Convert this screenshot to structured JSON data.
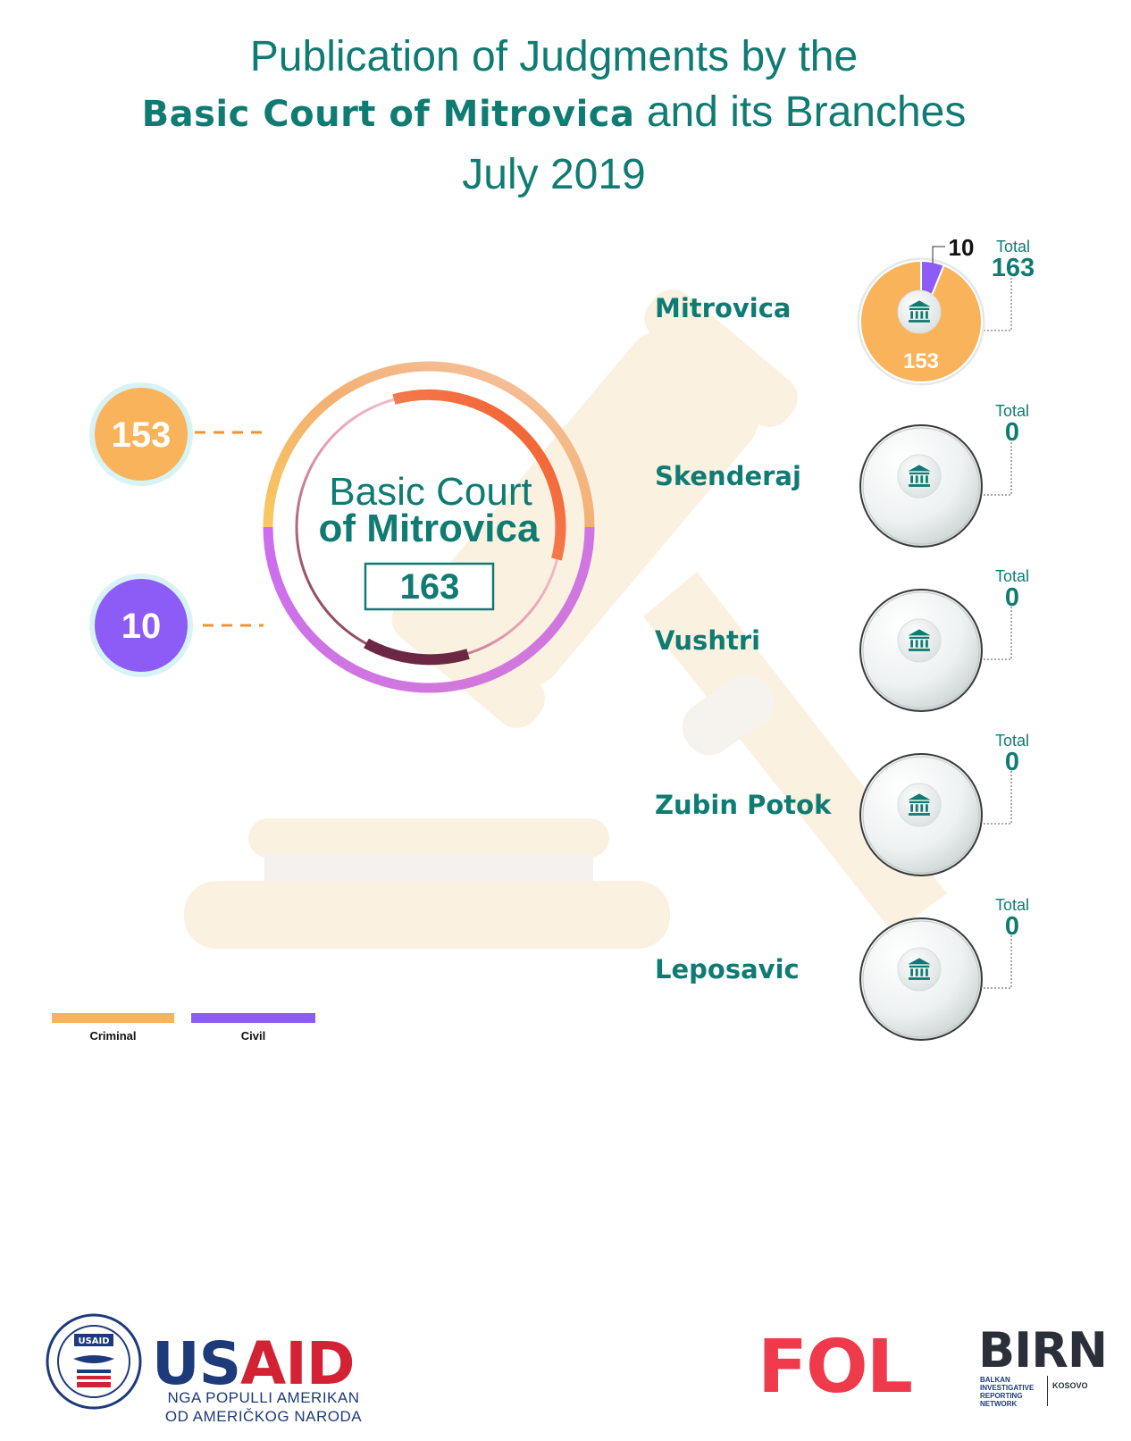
{
  "title": {
    "line1": "Publication of Judgments by the",
    "line2_bold": "Basic Court of Mitrovica",
    "line2_rest": " and its Branches",
    "line3": "July 2019"
  },
  "colors": {
    "criminal": "#f9b35a",
    "civil": "#8d5cf6",
    "teal": "#0f7b72"
  },
  "chart_data": [
    {
      "type": "donut",
      "title": "Basic Court of Mitrovica",
      "total": 163,
      "series": [
        {
          "name": "Criminal",
          "value": 153
        },
        {
          "name": "Civil",
          "value": 10
        }
      ],
      "legend": "bottom-left"
    },
    {
      "type": "pie",
      "branches": [
        {
          "name": "Mitrovica",
          "total": 163,
          "criminal": 153,
          "civil": 10
        },
        {
          "name": "Skenderaj",
          "total": 0,
          "criminal": 0,
          "civil": 0
        },
        {
          "name": "Vushtri",
          "total": 0,
          "criminal": 0,
          "civil": 0
        },
        {
          "name": "Zubin Potok",
          "total": 0,
          "criminal": 0,
          "civil": 0
        },
        {
          "name": "Leposavic",
          "total": 0,
          "criminal": 0,
          "civil": 0
        }
      ]
    }
  ],
  "main": {
    "criminal_bubble": "153",
    "civil_bubble": "10",
    "center_line1": "Basic Court",
    "center_line2": "of Mitrovica",
    "center_total": "163"
  },
  "total_label": "Total",
  "branch_icon": "courthouse-icon",
  "legend": [
    {
      "label": "Criminal"
    },
    {
      "label": "Civil"
    }
  ],
  "footer": {
    "usaid_seal_top": "USAID",
    "usaid_left": "US",
    "usaid_right": "AID",
    "usaid_line1": "NGA POPULLI AMERIKAN",
    "usaid_line2": "OD AMERIČKOG NARODA",
    "fol": "FOL",
    "birn": "BIRN",
    "birn_line1": "BALKAN",
    "birn_line2": "INVESTIGATIVE",
    "birn_line3": "REPORTING",
    "birn_line4": "NETWORK",
    "birn_country": "KOSOVO"
  }
}
